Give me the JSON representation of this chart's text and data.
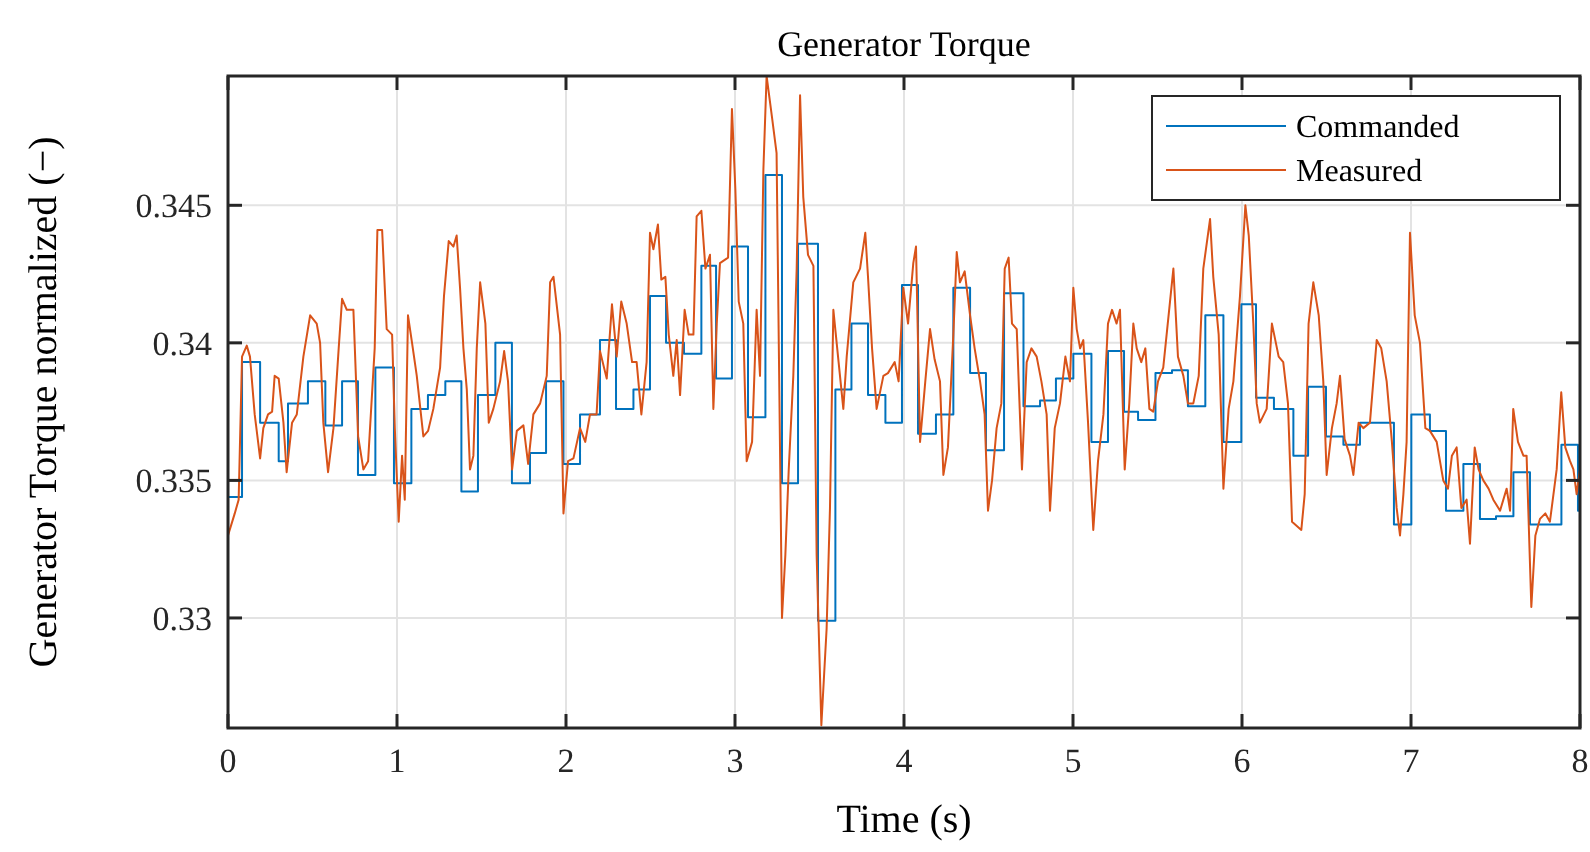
{
  "chart_data": {
    "type": "line",
    "title": "Generator Torque",
    "xlabel": "Time (s)",
    "ylabel": "Generator Torque normalized (−)",
    "xlim": [
      0,
      8
    ],
    "ylim": [
      0.326,
      0.3497
    ],
    "xticks": [
      0,
      1,
      2,
      3,
      4,
      5,
      6,
      7,
      8
    ],
    "yticks": [
      0.33,
      0.335,
      0.34,
      0.345
    ],
    "grid": true,
    "legend": "top right",
    "line_style": "solid",
    "marker": "none",
    "series": [
      {
        "name": "Commanded",
        "type": "step",
        "color": "#0072bd",
        "x": [
          0,
          0.083,
          0.19,
          0.3,
          0.355,
          0.473,
          0.576,
          0.675,
          0.769,
          0.872,
          0.982,
          1.085,
          1.183,
          1.286,
          1.381,
          1.479,
          1.582,
          1.68,
          1.787,
          1.882,
          1.985,
          2.083,
          2.201,
          2.296,
          2.399,
          2.497,
          2.592,
          2.698,
          2.801,
          2.888,
          2.982,
          3.077,
          3.18,
          3.278,
          3.373,
          3.491,
          3.594,
          3.689,
          3.787,
          3.89,
          3.988,
          4.083,
          4.189,
          4.292,
          4.391,
          4.485,
          4.592,
          4.707,
          4.805,
          4.899,
          5.002,
          5.109,
          5.207,
          5.302,
          5.385,
          5.488,
          5.586,
          5.68,
          5.783,
          5.89,
          5.996,
          6.083,
          6.189,
          6.304,
          6.391,
          6.497,
          6.6,
          6.698,
          6.899,
          7.002,
          7.112,
          7.207,
          7.31,
          7.408,
          7.503,
          7.606,
          7.704,
          7.89,
          7.988,
          8
        ],
        "values": [
          0.3344,
          0.3393,
          0.3371,
          0.3357,
          0.3378,
          0.3386,
          0.337,
          0.3386,
          0.3352,
          0.3391,
          0.3349,
          0.3376,
          0.3381,
          0.3386,
          0.3346,
          0.3381,
          0.34,
          0.3349,
          0.336,
          0.3386,
          0.3356,
          0.3374,
          0.3401,
          0.3376,
          0.3383,
          0.3417,
          0.34,
          0.3396,
          0.3428,
          0.3387,
          0.3435,
          0.3373,
          0.3461,
          0.3349,
          0.3436,
          0.3299,
          0.3383,
          0.3407,
          0.3381,
          0.3371,
          0.3421,
          0.3367,
          0.3374,
          0.342,
          0.3389,
          0.3361,
          0.3418,
          0.3377,
          0.3379,
          0.3387,
          0.3396,
          0.3364,
          0.3397,
          0.3375,
          0.3372,
          0.3389,
          0.339,
          0.3377,
          0.341,
          0.3364,
          0.3414,
          0.338,
          0.3376,
          0.3359,
          0.3384,
          0.3366,
          0.3363,
          0.3371,
          0.3334,
          0.3374,
          0.3368,
          0.3339,
          0.3356,
          0.3336,
          0.3337,
          0.3353,
          0.3334,
          0.3363,
          0.3339,
          0.3339
        ]
      },
      {
        "name": "Measured",
        "color": "#d95319",
        "x": [
          0,
          0.04,
          0.063,
          0.083,
          0.111,
          0.13,
          0.158,
          0.19,
          0.209,
          0.237,
          0.261,
          0.276,
          0.3,
          0.328,
          0.347,
          0.379,
          0.407,
          0.446,
          0.486,
          0.525,
          0.545,
          0.564,
          0.592,
          0.624,
          0.655,
          0.675,
          0.703,
          0.742,
          0.77,
          0.801,
          0.829,
          0.868,
          0.884,
          0.912,
          0.939,
          0.971,
          0.987,
          1.01,
          1.03,
          1.046,
          1.065,
          1.089,
          1.117,
          1.156,
          1.184,
          1.215,
          1.255,
          1.278,
          1.306,
          1.334,
          1.353,
          1.373,
          1.393,
          1.413,
          1.432,
          1.452,
          1.472,
          1.492,
          1.523,
          1.543,
          1.57,
          1.61,
          1.634,
          1.657,
          1.681,
          1.709,
          1.748,
          1.776,
          1.807,
          1.847,
          1.886,
          1.906,
          1.926,
          1.965,
          1.985,
          2.012,
          2.044,
          2.083,
          2.114,
          2.142,
          2.181,
          2.201,
          2.241,
          2.272,
          2.3,
          2.327,
          2.359,
          2.391,
          2.418,
          2.446,
          2.477,
          2.497,
          2.517,
          2.544,
          2.564,
          2.588,
          2.608,
          2.635,
          2.655,
          2.675,
          2.702,
          2.726,
          2.754,
          2.773,
          2.801,
          2.825,
          2.852,
          2.872,
          2.892,
          2.911,
          2.959,
          2.982,
          3.002,
          3.022,
          3.049,
          3.069,
          3.101,
          3.128,
          3.148,
          3.168,
          3.187,
          3.219,
          3.246,
          3.278,
          3.298,
          3.318,
          3.345,
          3.365,
          3.385,
          3.404,
          3.432,
          3.464,
          3.483,
          3.511,
          3.542,
          3.562,
          3.582,
          3.613,
          3.641,
          3.661,
          3.7,
          3.74,
          3.771,
          3.787,
          3.811,
          3.838,
          3.878,
          3.905,
          3.945,
          3.968,
          3.996,
          4.024,
          4.055,
          4.071,
          4.095,
          4.126,
          4.154,
          4.181,
          4.213,
          4.233,
          4.26,
          4.292,
          4.312,
          4.331,
          4.359,
          4.391,
          4.418,
          4.45,
          4.477,
          4.497,
          4.521,
          4.548,
          4.576,
          4.596,
          4.619,
          4.639,
          4.667,
          4.698,
          4.726,
          4.754,
          4.785,
          4.813,
          4.844,
          4.864,
          4.892,
          4.923,
          4.955,
          4.982,
          5.002,
          5.022,
          5.042,
          5.061,
          5.089,
          5.12,
          5.148,
          5.18,
          5.207,
          5.231,
          5.258,
          5.278,
          5.306,
          5.333,
          5.357,
          5.377,
          5.404,
          5.428,
          5.452,
          5.475,
          5.503,
          5.534,
          5.574,
          5.594,
          5.621,
          5.653,
          5.68,
          5.712,
          5.744,
          5.771,
          5.811,
          5.83,
          5.862,
          5.89,
          5.921,
          5.949,
          5.988,
          6.02,
          6.04,
          6.067,
          6.087,
          6.106,
          6.146,
          6.177,
          6.217,
          6.244,
          6.272,
          6.296,
          6.351,
          6.371,
          6.394,
          6.422,
          6.454,
          6.481,
          6.501,
          6.532,
          6.56,
          6.58,
          6.607,
          6.639,
          6.659,
          6.69,
          6.718,
          6.757,
          6.797,
          6.824,
          6.856,
          6.887,
          6.915,
          6.935,
          6.955,
          6.974,
          6.994,
          7.022,
          7.053,
          7.085,
          7.112,
          7.152,
          7.191,
          7.219,
          7.242,
          7.27,
          7.298,
          7.329,
          7.349,
          7.377,
          7.4,
          7.428,
          7.459,
          7.487,
          7.527,
          7.566,
          7.586,
          7.605,
          7.633,
          7.665,
          7.684,
          7.712,
          7.736,
          7.763,
          7.795,
          7.822,
          7.862,
          7.889,
          7.913,
          7.941,
          7.961,
          7.98,
          8
        ],
        "values": [
          0.333,
          0.3338,
          0.3343,
          0.3395,
          0.3399,
          0.3395,
          0.3374,
          0.3358,
          0.3369,
          0.3374,
          0.3375,
          0.3388,
          0.3387,
          0.3371,
          0.3353,
          0.3371,
          0.3374,
          0.3395,
          0.341,
          0.3407,
          0.34,
          0.3371,
          0.3353,
          0.3369,
          0.3398,
          0.3416,
          0.3412,
          0.3412,
          0.3366,
          0.3354,
          0.3357,
          0.3398,
          0.3441,
          0.3441,
          0.3405,
          0.3403,
          0.3369,
          0.3335,
          0.3359,
          0.3343,
          0.341,
          0.34,
          0.3388,
          0.3366,
          0.3368,
          0.3376,
          0.3391,
          0.3417,
          0.3437,
          0.3435,
          0.3439,
          0.342,
          0.3398,
          0.3383,
          0.3354,
          0.3359,
          0.3398,
          0.3422,
          0.3407,
          0.3371,
          0.3376,
          0.3386,
          0.3397,
          0.3386,
          0.3354,
          0.3368,
          0.337,
          0.3356,
          0.3374,
          0.3378,
          0.3388,
          0.3422,
          0.3424,
          0.3403,
          0.3338,
          0.3357,
          0.3358,
          0.3369,
          0.3364,
          0.3374,
          0.3374,
          0.3397,
          0.3387,
          0.3414,
          0.3395,
          0.3415,
          0.3407,
          0.3393,
          0.3393,
          0.3374,
          0.3393,
          0.344,
          0.3434,
          0.3443,
          0.3423,
          0.3424,
          0.3403,
          0.3388,
          0.3401,
          0.3381,
          0.3412,
          0.3403,
          0.3403,
          0.3446,
          0.3448,
          0.3427,
          0.3432,
          0.3376,
          0.3407,
          0.3429,
          0.3431,
          0.3485,
          0.3456,
          0.3415,
          0.3407,
          0.3357,
          0.3364,
          0.3412,
          0.3388,
          0.3463,
          0.3497,
          0.3482,
          0.3469,
          0.33,
          0.3323,
          0.3354,
          0.3388,
          0.3427,
          0.349,
          0.3453,
          0.3432,
          0.3428,
          0.3323,
          0.3261,
          0.3296,
          0.334,
          0.3412,
          0.3393,
          0.3376,
          0.3395,
          0.3422,
          0.3427,
          0.344,
          0.3424,
          0.3398,
          0.3376,
          0.3388,
          0.3389,
          0.3393,
          0.3386,
          0.342,
          0.3407,
          0.3429,
          0.3435,
          0.3364,
          0.3386,
          0.3405,
          0.3394,
          0.3386,
          0.3352,
          0.3362,
          0.3403,
          0.3433,
          0.3422,
          0.3426,
          0.341,
          0.3398,
          0.3386,
          0.3374,
          0.3339,
          0.335,
          0.3369,
          0.3378,
          0.3427,
          0.3431,
          0.3407,
          0.3405,
          0.3354,
          0.3393,
          0.3398,
          0.3395,
          0.3386,
          0.3374,
          0.3339,
          0.3369,
          0.3378,
          0.3395,
          0.3386,
          0.342,
          0.3405,
          0.3398,
          0.3401,
          0.3371,
          0.3332,
          0.3357,
          0.3374,
          0.3407,
          0.3412,
          0.3407,
          0.3412,
          0.3354,
          0.3378,
          0.3407,
          0.3398,
          0.3393,
          0.3398,
          0.3376,
          0.3375,
          0.3386,
          0.3391,
          0.3415,
          0.3427,
          0.3395,
          0.3388,
          0.3378,
          0.3378,
          0.3388,
          0.3427,
          0.3445,
          0.3424,
          0.3403,
          0.3347,
          0.3376,
          0.3386,
          0.3417,
          0.345,
          0.3439,
          0.3407,
          0.3378,
          0.3371,
          0.3376,
          0.3407,
          0.3395,
          0.3393,
          0.3378,
          0.3335,
          0.3332,
          0.3345,
          0.3407,
          0.3422,
          0.341,
          0.3386,
          0.3352,
          0.3369,
          0.3378,
          0.3388,
          0.3365,
          0.3359,
          0.3352,
          0.3371,
          0.3369,
          0.3371,
          0.3401,
          0.3398,
          0.3386,
          0.3364,
          0.334,
          0.333,
          0.3345,
          0.3364,
          0.344,
          0.341,
          0.34,
          0.3369,
          0.3368,
          0.3364,
          0.335,
          0.3347,
          0.3359,
          0.3362,
          0.334,
          0.3343,
          0.3327,
          0.3362,
          0.3354,
          0.335,
          0.3347,
          0.3343,
          0.3339,
          0.3347,
          0.3339,
          0.3376,
          0.3364,
          0.3359,
          0.3359,
          0.3304,
          0.333,
          0.3336,
          0.3338,
          0.3335,
          0.3354,
          0.3382,
          0.3362,
          0.3357,
          0.3354,
          0.3345,
          0.3354
        ]
      }
    ]
  }
}
